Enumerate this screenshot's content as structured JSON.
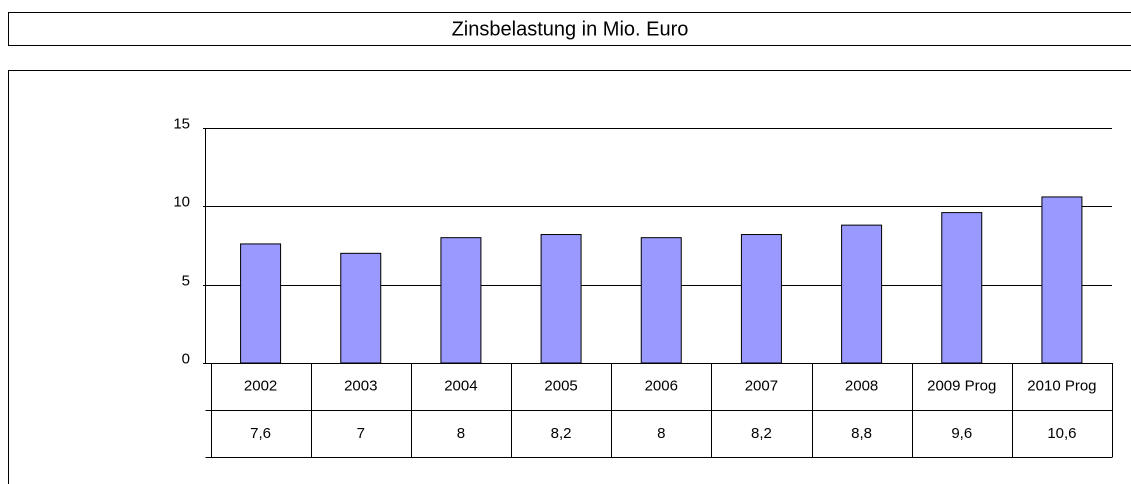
{
  "chart_data": {
    "type": "bar",
    "title": "Zinsbelastung in Mio. Euro",
    "categories": [
      "2002",
      "2003",
      "2004",
      "2005",
      "2006",
      "2007",
      "2008",
      "2009 Prog",
      "2010 Prog"
    ],
    "values": [
      7.6,
      7,
      8,
      8.2,
      8,
      8.2,
      8.8,
      9.6,
      10.6
    ],
    "value_labels": [
      "7,6",
      "7",
      "8",
      "8,2",
      "8",
      "8,2",
      "8,8",
      "9,6",
      "10,6"
    ],
    "color": "#9999ff",
    "ylim": [
      0,
      15
    ],
    "yticks": [
      0,
      5,
      10,
      15
    ],
    "grid": true
  }
}
